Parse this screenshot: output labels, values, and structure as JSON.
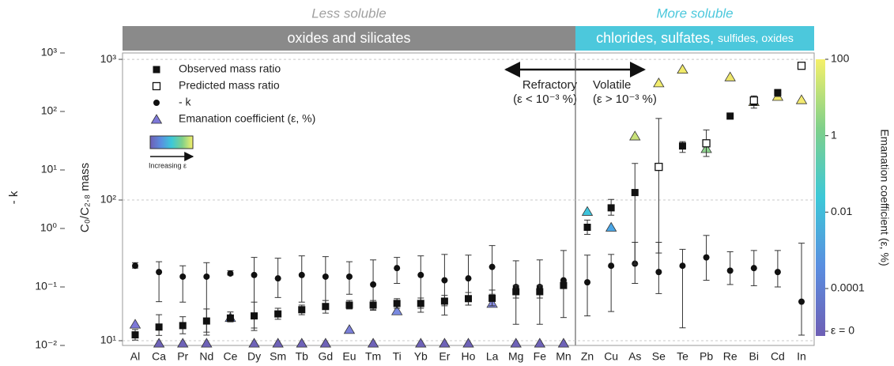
{
  "chart_data": {
    "type": "dot",
    "groups": [
      {
        "solubility": "Less soluble",
        "name": "oxides and silicates",
        "color": "#8a8a8a",
        "solubility_color": "#a0a0a0",
        "categories": [
          "Al",
          "Ca",
          "Pr",
          "Nd",
          "Ce",
          "Dy",
          "Sm",
          "Tb",
          "Gd",
          "Eu",
          "Tm",
          "Ti",
          "Yb",
          "Er",
          "Ho",
          "La",
          "Mg",
          "Fe",
          "Mn"
        ]
      },
      {
        "solubility": "More soluble",
        "name": "chlorides, sulfates,",
        "name_small": "sulfides, oxides",
        "color": "#4cc8dc",
        "solubility_color": "#4cc8dc",
        "categories": [
          "Zn",
          "Cu",
          "As",
          "Se",
          "Te",
          "Pb",
          "Re",
          "Bi",
          "Cd",
          "In"
        ]
      }
    ],
    "ylabel": "C₀/C₂.₈ mass",
    "ylim": [
      9.25,
      1110
    ],
    "log_y": true,
    "yticks": [
      {
        "value": 10,
        "label": "10¹"
      },
      {
        "value": 100,
        "label": "10²"
      },
      {
        "value": 1000,
        "label": "10³"
      }
    ],
    "y2label": "- k",
    "y2lim": [
      0.01,
      1000
    ],
    "y2ticks": [
      {
        "value": 0.01,
        "label": "10⁻²"
      },
      {
        "value": 0.1,
        "label": "10⁻¹"
      },
      {
        "value": 1,
        "label": "10⁰"
      },
      {
        "value": 10,
        "label": "10¹"
      },
      {
        "value": 100,
        "label": "10²"
      },
      {
        "value": 1000,
        "label": "10³"
      }
    ],
    "grid": true,
    "legend": "upper left",
    "series": [
      {
        "name": "Observed mass ratio",
        "marker": "square",
        "color": "#111111",
        "values": [
          11,
          12.5,
          12.8,
          13.8,
          14.5,
          15,
          15.5,
          16.6,
          17.5,
          17.9,
          17.9,
          18.4,
          18.4,
          19.1,
          19.9,
          20,
          22.3,
          22.3,
          24.7,
          64,
          88,
          113,
          null,
          242,
          null,
          395,
          497,
          580,
          null
        ],
        "lower": [
          10.1,
          10.9,
          11.2,
          11.5,
          13.6,
          12.3,
          14.2,
          15.3,
          15.7,
          16.8,
          16.6,
          17,
          17,
          17.7,
          17.9,
          17.7,
          20.1,
          20.1,
          23.8,
          57,
          78,
          35,
          null,
          218,
          null,
          null,
          450,
          545,
          null
        ],
        "upper": [
          12,
          15.3,
          14.8,
          16.8,
          16,
          18.8,
          17,
          17.9,
          19.3,
          19.3,
          19.3,
          19.9,
          20.1,
          21,
          22,
          22.9,
          24.7,
          24.7,
          26,
          72,
          101,
          182,
          null,
          260,
          null,
          null,
          550,
          610,
          null
        ]
      },
      {
        "name": "Predicted mass ratio",
        "marker": "open-square",
        "color": "#111111",
        "values": [
          null,
          null,
          null,
          null,
          null,
          null,
          null,
          null,
          null,
          null,
          null,
          null,
          null,
          null,
          null,
          null,
          null,
          null,
          null,
          null,
          null,
          null,
          172,
          null,
          253,
          null,
          510,
          null,
          900
        ],
        "lower": [
          null,
          null,
          null,
          null,
          null,
          null,
          null,
          null,
          null,
          null,
          null,
          null,
          null,
          null,
          null,
          null,
          null,
          null,
          null,
          null,
          null,
          null,
          42,
          null,
          204,
          null,
          null,
          null,
          null
        ],
        "upper": [
          null,
          null,
          null,
          null,
          null,
          null,
          null,
          null,
          null,
          null,
          null,
          null,
          null,
          null,
          null,
          null,
          null,
          null,
          null,
          null,
          null,
          null,
          380,
          null,
          315,
          null,
          null,
          null,
          null
        ]
      },
      {
        "name": "- k",
        "marker": "circle",
        "color": "#111111",
        "axis": "y2",
        "values": [
          0.23,
          0.18,
          0.15,
          0.15,
          0.17,
          0.16,
          0.14,
          0.16,
          0.15,
          0.15,
          0.11,
          0.21,
          0.16,
          0.13,
          0.14,
          0.22,
          0.1,
          0.1,
          0.13,
          0.12,
          0.23,
          0.25,
          0.18,
          0.23,
          0.32,
          0.19,
          0.21,
          0.18,
          0.056
        ],
        "lower": [
          0.21,
          0.056,
          0.055,
          0.015,
          0.16,
          0.018,
          0.066,
          0.055,
          0.051,
          0.075,
          0.04,
          0.115,
          0.037,
          0.033,
          0.049,
          0.075,
          0.023,
          0.023,
          0.03,
          0.032,
          0.038,
          0.115,
          0.077,
          0.02,
          0.13,
          0.11,
          0.105,
          0.1,
          0.015
        ],
        "upper": [
          0.26,
          0.27,
          0.23,
          0.26,
          0.19,
          0.32,
          0.31,
          0.34,
          0.33,
          0.27,
          0.29,
          0.32,
          0.34,
          0.36,
          0.35,
          0.51,
          0.28,
          0.29,
          0.42,
          0.35,
          0.36,
          0.58,
          0.58,
          0.44,
          0.76,
          0.4,
          0.42,
          0.42,
          0.56
        ]
      },
      {
        "name": "Emanation coefficient (ε, %)",
        "marker": "triangle",
        "color": "#7d78d8",
        "values": [
          13.1,
          9.6,
          9.6,
          9.6,
          14.6,
          9.6,
          9.6,
          9.6,
          9.6,
          12,
          9.6,
          16.3,
          9.6,
          9.6,
          9.6,
          18.4,
          9.6,
          9.6,
          9.6,
          83,
          64,
          285,
          680,
          850,
          232,
          750,
          500,
          545,
          516
        ],
        "colors": [
          "#7d78d8",
          "#6e62b8",
          "#6e62b8",
          "#6e62b8",
          "#6f87d8",
          "#6e62b8",
          "#6e62b8",
          "#6e62b8",
          "#6e62b8",
          "#7a7fd8",
          "#6e62b8",
          "#7a8ae0",
          "#6e62b8",
          "#6e62b8",
          "#6e62b8",
          "#8a8fe8",
          "#6e62b8",
          "#6e62b8",
          "#6e62b8",
          "#3ec4dc",
          "#4aa6e6",
          "#c9e27a",
          "#f2ec6e",
          "#f0ea6a",
          "#8fd38f",
          "#eee66a",
          "#e8e26a",
          "#f0e66a",
          "#f3ea70"
        ]
      }
    ],
    "legend_note": "Increasing ε",
    "annotations": {
      "left": [
        "Refractory",
        "(ε < 10⁻³ %)"
      ],
      "right": [
        "Volatile",
        "(ε > 10⁻³ %)"
      ]
    },
    "colorbar": {
      "label": "Emanation coefficient (ε, %)",
      "colors": [
        "#6e5fb5",
        "#5a8ee0",
        "#3cc8d8",
        "#7fd08a",
        "#f5f06a"
      ],
      "ticks": [
        {
          "value": 0,
          "label": "ε = 0"
        },
        0.0001,
        0.01,
        1,
        100
      ]
    }
  }
}
